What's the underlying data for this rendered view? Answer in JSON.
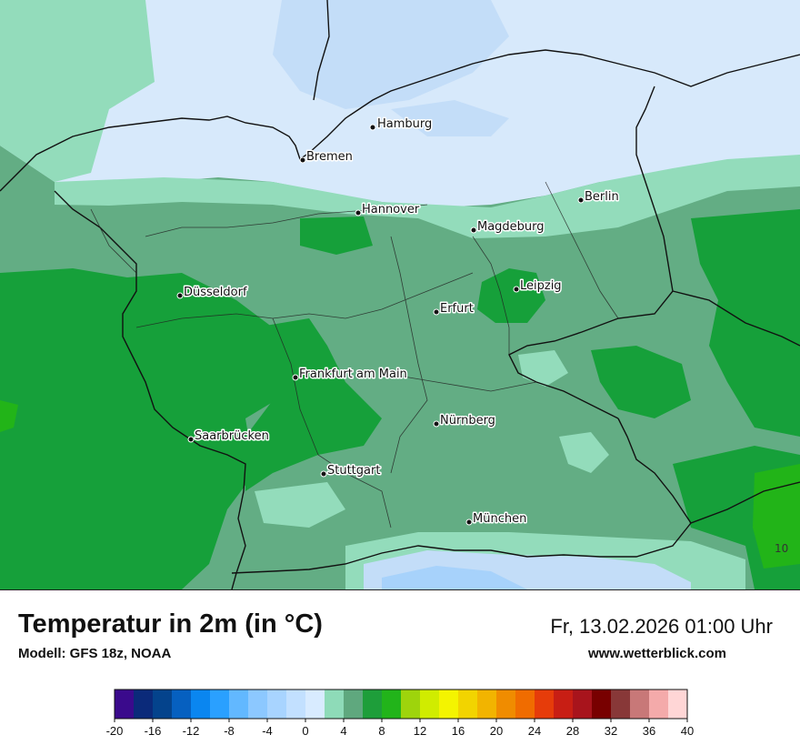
{
  "map": {
    "region": "Germany",
    "cities": [
      {
        "name": "Hamburg"
      },
      {
        "name": "Bremen"
      },
      {
        "name": "Berlin"
      },
      {
        "name": "Hannover"
      },
      {
        "name": "Magdeburg"
      },
      {
        "name": "Düsseldorf"
      },
      {
        "name": "Leipzig"
      },
      {
        "name": "Erfurt"
      },
      {
        "name": "Frankfurt am Main"
      },
      {
        "name": "Nürnberg"
      },
      {
        "name": "Saarbrücken"
      },
      {
        "name": "Stuttgart"
      },
      {
        "name": "München"
      }
    ],
    "corner_value": "10"
  },
  "header": {
    "title": "Temperatur in 2m (in °C)",
    "model": "Modell: GFS 18z, NOAA",
    "datetime": "Fr, 13.02.2026 01:00 Uhr",
    "website": "www.wetterblick.com"
  },
  "legend": {
    "ticks": [
      "-20",
      "-16",
      "-12",
      "-8",
      "-4",
      "0",
      "4",
      "8",
      "12",
      "16",
      "20",
      "24",
      "28",
      "32",
      "36",
      "40"
    ],
    "colors": [
      "#3a0a8c",
      "#0b2a7a",
      "#04438c",
      "#0660c0",
      "#0a86f0",
      "#2aa0ff",
      "#62b8ff",
      "#8cc8ff",
      "#a8d4ff",
      "#c2e0ff",
      "#d8ebff",
      "#8edbb8",
      "#5fa87e",
      "#1e9e3a",
      "#22b41a",
      "#9ed40c",
      "#d0ec00",
      "#f4f400",
      "#f2d400",
      "#f2b400",
      "#f08c00",
      "#f06c00",
      "#e63c0a",
      "#c81e14",
      "#a8141c",
      "#780000",
      "#883838",
      "#c87878",
      "#f4aaaa",
      "#ffd6d6"
    ]
  }
}
